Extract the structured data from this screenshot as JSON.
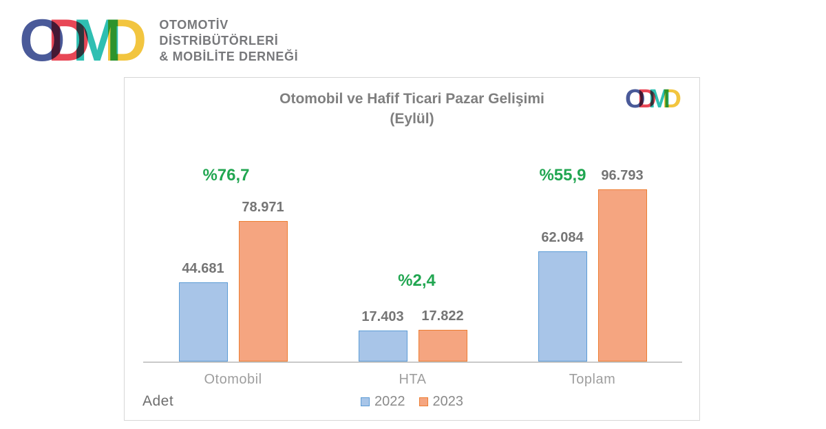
{
  "brand": {
    "logo_letters": [
      {
        "char": "O",
        "color": "#4A5A99"
      },
      {
        "char": "D",
        "color": "#E84756"
      },
      {
        "char": "M",
        "color": "#2FBFB2"
      },
      {
        "char": "D",
        "color": "#F2C53F"
      }
    ],
    "name_line1": "OTOMOTİV",
    "name_line2": "DİSTRİBÜTÖRLERİ",
    "name_line3": "& MOBİLİTE DERNEĞİ"
  },
  "chart": {
    "title_line1": "Otomobil ve Hafif Ticari Pazar Gelişimi",
    "title_line2": "(Eylül)",
    "unit_label": "Adet"
  },
  "chart_data": {
    "type": "bar",
    "title": "Otomobil ve Hafif Ticari Pazar Gelişimi (Eylül)",
    "categories": [
      "Otomobil",
      "HTA",
      "Toplam"
    ],
    "series": [
      {
        "name": "2022",
        "fill": "#A8C5E8",
        "border": "#5B9BD5",
        "values": [
          44681,
          17403,
          62084
        ],
        "value_labels": [
          "44.681",
          "17.403",
          "62.084"
        ]
      },
      {
        "name": "2023",
        "fill": "#F5A580",
        "border": "#ED7D31",
        "values": [
          78971,
          17822,
          96793
        ],
        "value_labels": [
          "78.971",
          "17.822",
          "96.793"
        ]
      }
    ],
    "growth_labels": [
      "%76,7",
      "%2,4",
      "%55,9"
    ],
    "growth_color": "#21A651",
    "xlabel": "",
    "ylabel": "Adet",
    "ylim": [
      0,
      100000
    ],
    "grid": false,
    "legend_position": "bottom-center"
  }
}
